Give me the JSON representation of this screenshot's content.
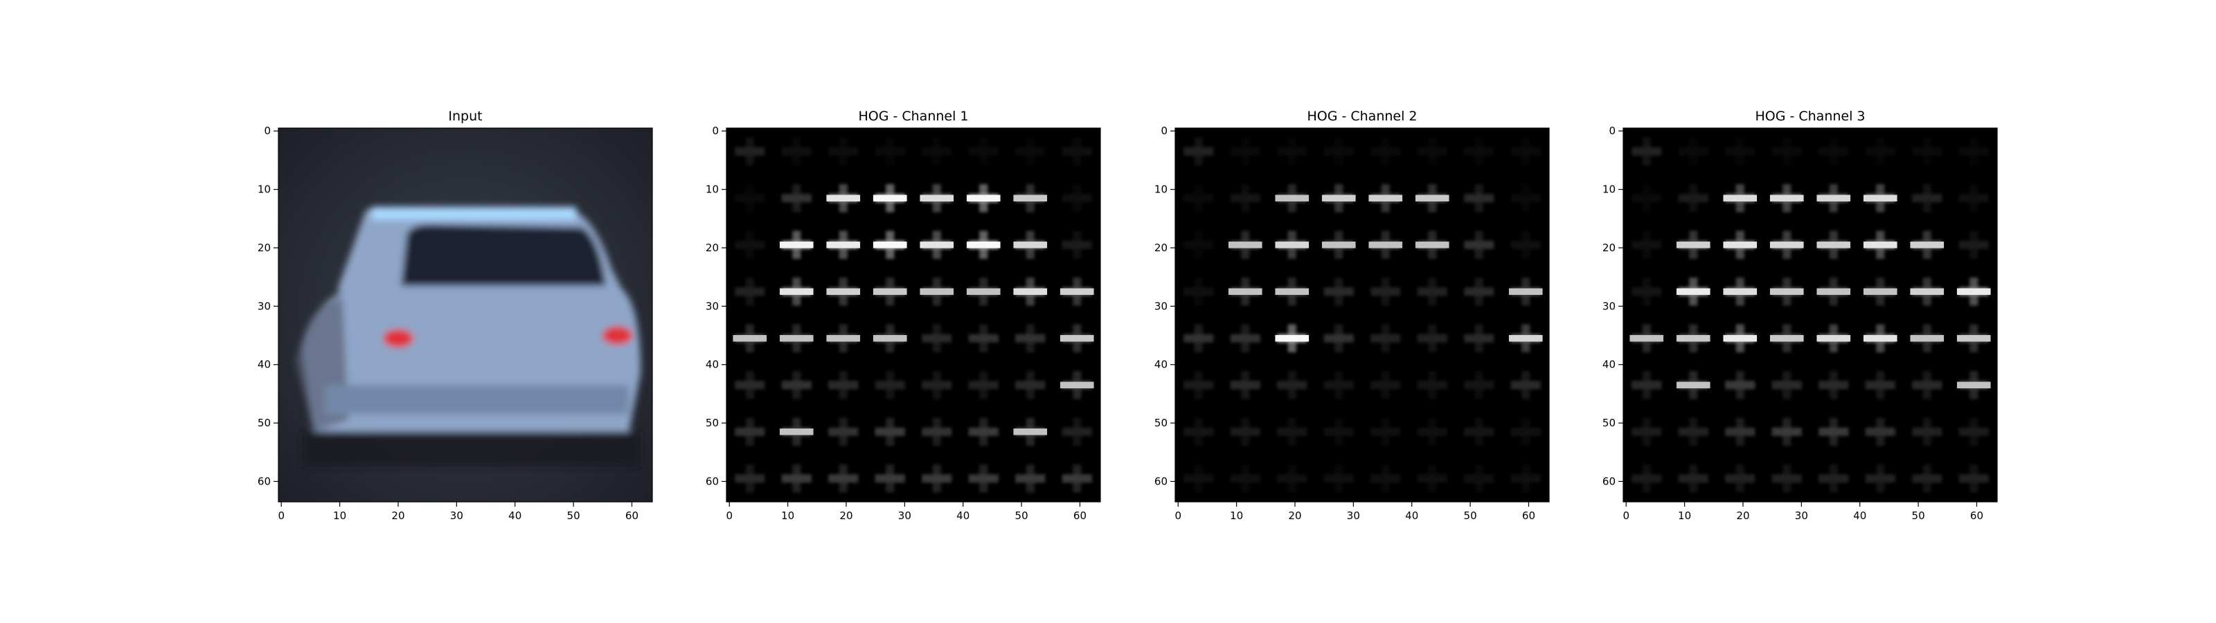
{
  "chart_data": [
    {
      "type": "image",
      "title": "Input",
      "content": "car-rear-photo",
      "xlim": [
        0,
        64
      ],
      "ylim": [
        64,
        0
      ],
      "xticks": [
        0,
        10,
        20,
        30,
        40,
        50,
        60
      ],
      "yticks": [
        0,
        10,
        20,
        30,
        40,
        50,
        60
      ],
      "colors": {
        "background": "#2b2f3a",
        "car_body": "#8fa6c8",
        "window": "#1c2330",
        "highlight": "#a9d8ff",
        "tail_light": "#e0303a"
      }
    },
    {
      "type": "heatmap",
      "title": "HOG - Channel 1",
      "content": "hog-visualization",
      "xlim": [
        0,
        64
      ],
      "ylim": [
        64,
        0
      ],
      "xticks": [
        0,
        10,
        20,
        30,
        40,
        50,
        60
      ],
      "yticks": [
        0,
        10,
        20,
        30,
        40,
        50,
        60
      ],
      "cells": [
        [
          0.35,
          0.2,
          0.18,
          0.15,
          0.15,
          0.15,
          0.15,
          0.2
        ],
        [
          0.15,
          0.45,
          0.8,
          0.95,
          0.75,
          0.95,
          0.6,
          0.2
        ],
        [
          0.2,
          0.9,
          0.85,
          0.95,
          0.8,
          0.95,
          0.7,
          0.3
        ],
        [
          0.35,
          0.8,
          0.65,
          0.6,
          0.55,
          0.55,
          0.75,
          0.65
        ],
        [
          0.55,
          0.55,
          0.55,
          0.55,
          0.4,
          0.45,
          0.45,
          0.6
        ],
        [
          0.4,
          0.45,
          0.4,
          0.35,
          0.35,
          0.35,
          0.4,
          0.55
        ],
        [
          0.45,
          0.55,
          0.45,
          0.5,
          0.45,
          0.5,
          0.55,
          0.35
        ],
        [
          0.4,
          0.5,
          0.5,
          0.5,
          0.5,
          0.5,
          0.5,
          0.5
        ]
      ]
    },
    {
      "type": "heatmap",
      "title": "HOG - Channel 2",
      "content": "hog-visualization",
      "xlim": [
        0,
        64
      ],
      "ylim": [
        64,
        0
      ],
      "xticks": [
        0,
        10,
        20,
        30,
        40,
        50,
        60
      ],
      "yticks": [
        0,
        10,
        20,
        30,
        40,
        50,
        60
      ],
      "cells": [
        [
          0.35,
          0.15,
          0.15,
          0.15,
          0.15,
          0.15,
          0.15,
          0.15
        ],
        [
          0.15,
          0.25,
          0.55,
          0.65,
          0.65,
          0.6,
          0.4,
          0.15
        ],
        [
          0.15,
          0.55,
          0.7,
          0.55,
          0.55,
          0.55,
          0.45,
          0.2
        ],
        [
          0.2,
          0.55,
          0.55,
          0.4,
          0.35,
          0.35,
          0.4,
          0.55
        ],
        [
          0.45,
          0.45,
          0.95,
          0.45,
          0.35,
          0.35,
          0.4,
          0.7
        ],
        [
          0.3,
          0.4,
          0.35,
          0.25,
          0.25,
          0.25,
          0.25,
          0.4
        ],
        [
          0.25,
          0.3,
          0.25,
          0.2,
          0.2,
          0.2,
          0.25,
          0.2
        ],
        [
          0.2,
          0.2,
          0.2,
          0.2,
          0.2,
          0.2,
          0.2,
          0.2
        ]
      ]
    },
    {
      "type": "heatmap",
      "title": "HOG - Channel 3",
      "content": "hog-visualization",
      "xlim": [
        0,
        64
      ],
      "ylim": [
        64,
        0
      ],
      "xticks": [
        0,
        10,
        20,
        30,
        40,
        50,
        60
      ],
      "yticks": [
        0,
        10,
        20,
        30,
        40,
        50,
        60
      ],
      "cells": [
        [
          0.35,
          0.15,
          0.15,
          0.15,
          0.15,
          0.15,
          0.15,
          0.15
        ],
        [
          0.15,
          0.3,
          0.75,
          0.75,
          0.7,
          0.75,
          0.35,
          0.2
        ],
        [
          0.2,
          0.65,
          0.8,
          0.7,
          0.65,
          0.8,
          0.65,
          0.3
        ],
        [
          0.25,
          0.85,
          0.75,
          0.6,
          0.55,
          0.55,
          0.65,
          0.85
        ],
        [
          0.55,
          0.6,
          0.85,
          0.6,
          0.75,
          0.8,
          0.55,
          0.6
        ],
        [
          0.4,
          0.55,
          0.5,
          0.4,
          0.4,
          0.4,
          0.4,
          0.55
        ],
        [
          0.3,
          0.35,
          0.45,
          0.5,
          0.5,
          0.45,
          0.35,
          0.3
        ],
        [
          0.3,
          0.35,
          0.35,
          0.35,
          0.35,
          0.35,
          0.35,
          0.35
        ]
      ]
    }
  ]
}
